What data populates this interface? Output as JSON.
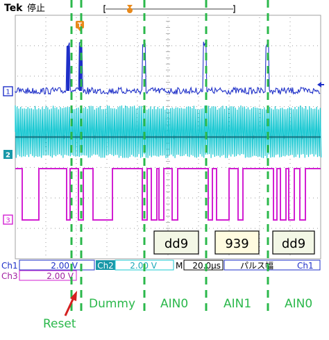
{
  "header": {
    "brand": "Tek",
    "run_state": "停止",
    "trigger_marker": "T"
  },
  "channels": [
    {
      "id": "1",
      "color": "#1e2fc8"
    },
    {
      "id": "2",
      "color": "#19c8d2"
    },
    {
      "id": "3",
      "color": "#d21ed2"
    }
  ],
  "decoded": [
    {
      "value": "dd9",
      "fill": "#f3f7e6"
    },
    {
      "value": "939",
      "fill": "#fffbe0"
    },
    {
      "value": "dd9",
      "fill": "#f3f7e6"
    }
  ],
  "status": {
    "ch1_label": "Ch1",
    "ch1_scale": "2.00 V",
    "ch2_label": "Ch2",
    "ch2_scale": "2.00 V",
    "timebase_label": "M",
    "timebase_value": "20.0µs",
    "trigger_mode": "パルス幅",
    "trigger_source": "Ch1",
    "ch3_label": "Ch3",
    "ch3_scale": "2.00 V"
  },
  "annotations": {
    "phase_labels": [
      "Dummy",
      "AIN0",
      "AIN1",
      "AIN0"
    ],
    "reset_label": "Reset",
    "label_color": "#2bb84b",
    "reset_color": "#d42020"
  }
}
